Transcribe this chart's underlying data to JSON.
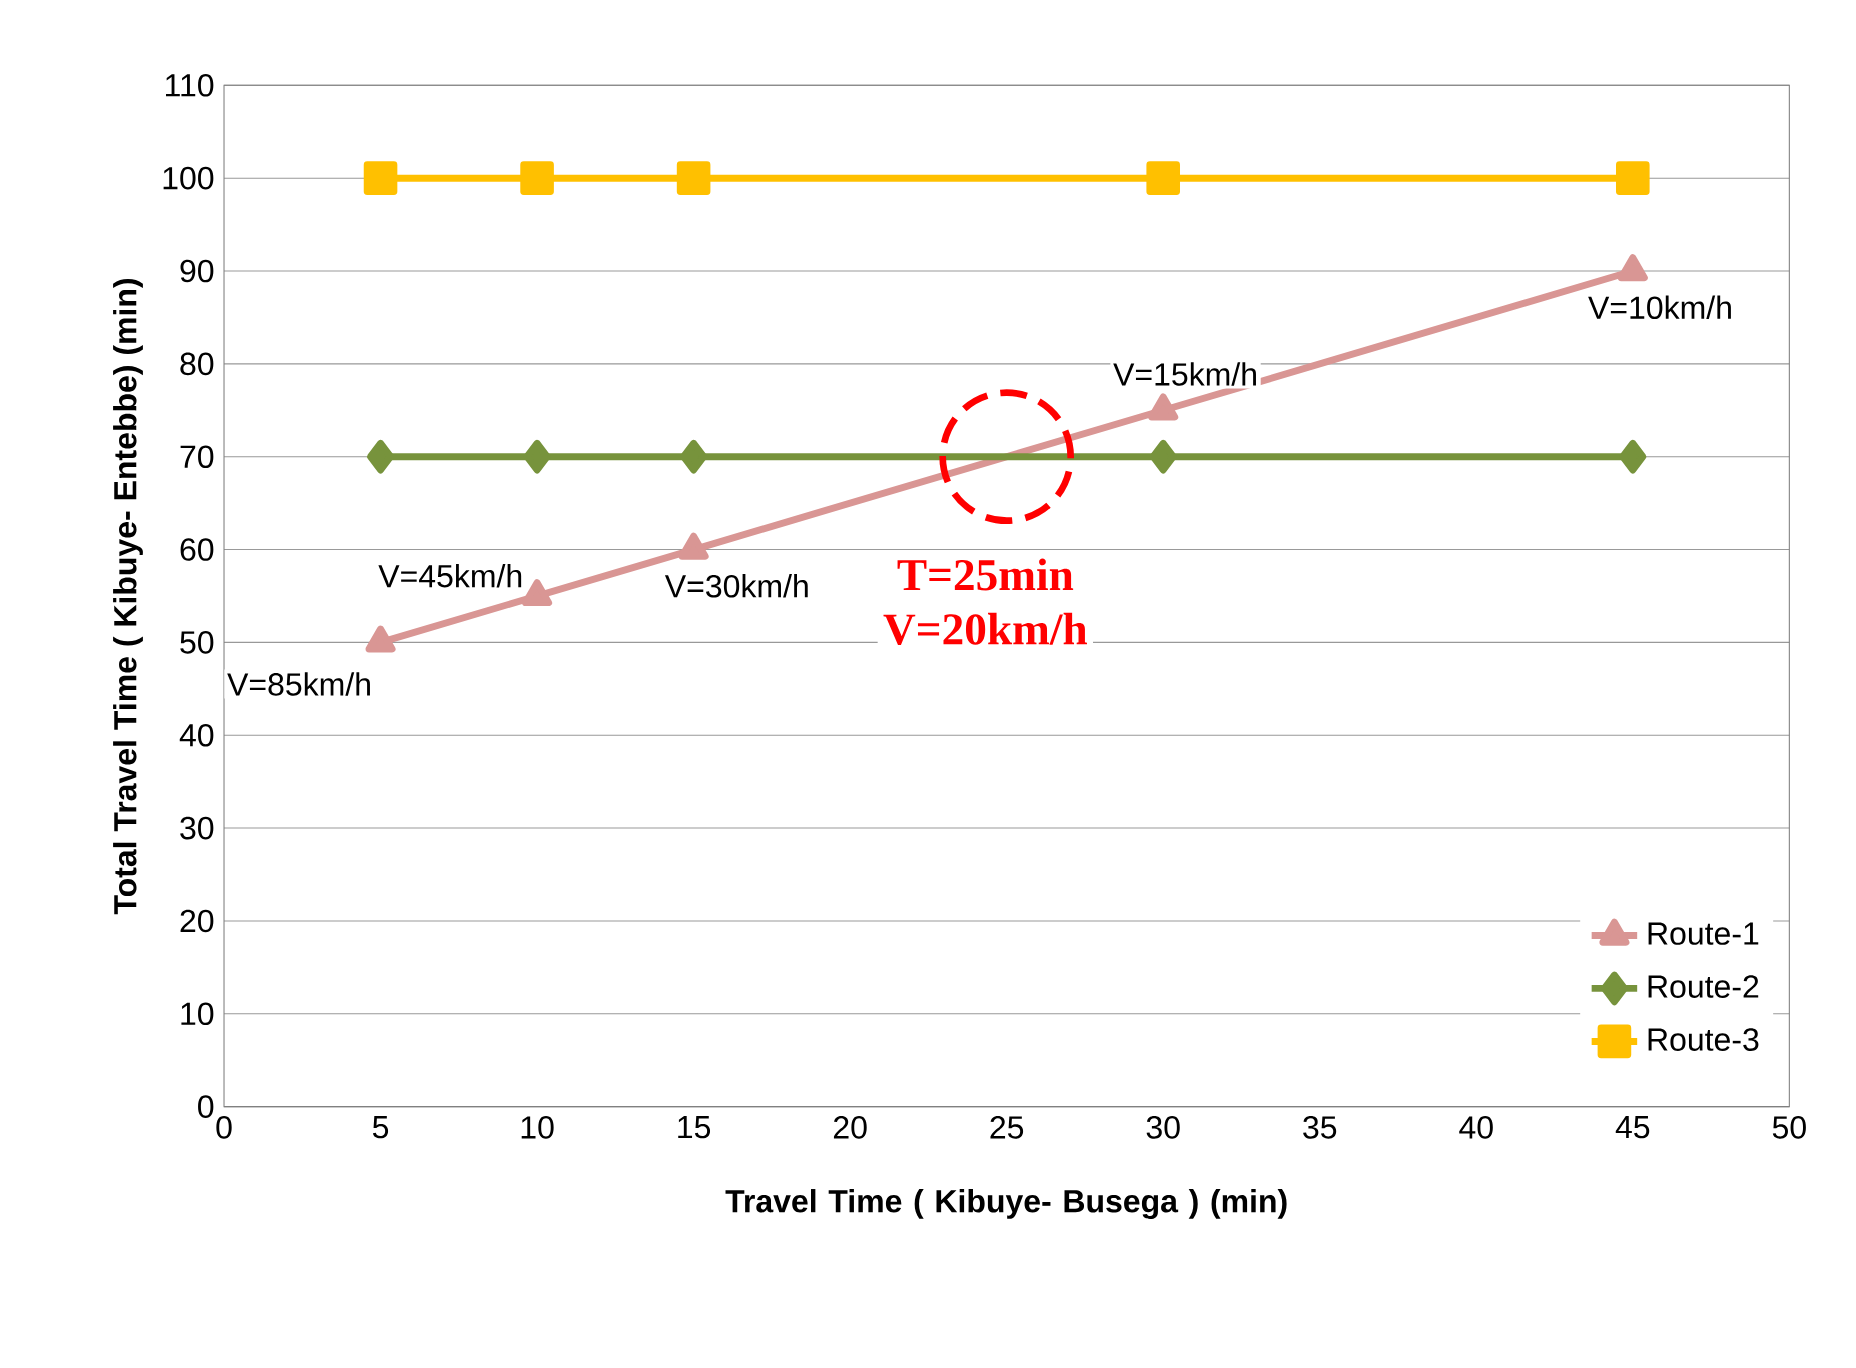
{
  "chart_data": {
    "type": "line",
    "xlabel": "Travel Time ( Kibuye- Busega ) (min)",
    "ylabel": "Total Travel Time ( Kibuye- Entebbe)  (min)",
    "x": [
      5,
      10,
      15,
      30,
      45
    ],
    "series": [
      {
        "name": "Route-1",
        "color": "#d99694",
        "marker": "triangle",
        "values": [
          50,
          55,
          60,
          75,
          90
        ]
      },
      {
        "name": "Route-2",
        "color": "#77933c",
        "marker": "diamond",
        "values": [
          70,
          70,
          70,
          70,
          70
        ]
      },
      {
        "name": "Route-3",
        "color": "#ffc000",
        "marker": "square",
        "values": [
          100,
          100,
          100,
          100,
          100
        ]
      }
    ],
    "xlim": [
      0,
      50
    ],
    "xticks": [
      0,
      5,
      10,
      15,
      20,
      25,
      30,
      35,
      40,
      45,
      50
    ],
    "ylim": [
      0,
      110
    ],
    "yticks": [
      0,
      10,
      20,
      30,
      40,
      50,
      60,
      70,
      80,
      90,
      100,
      110
    ],
    "grid": "y",
    "legend": "bottom right",
    "line_style": "solid",
    "annotations": [
      {
        "text": "V=85km/h",
        "x": 5,
        "y": 50
      },
      {
        "text": "V=45km/h",
        "x": 10,
        "y": 55
      },
      {
        "text": "V=30km/h",
        "x": 15,
        "y": 60
      },
      {
        "text": "V=15km/h",
        "x": 30,
        "y": 75
      },
      {
        "text": "V=10km/h",
        "x": 45,
        "y": 90
      },
      {
        "text": "T=25min",
        "x": 25,
        "y": 70
      },
      "V=20km/h"
    ]
  }
}
